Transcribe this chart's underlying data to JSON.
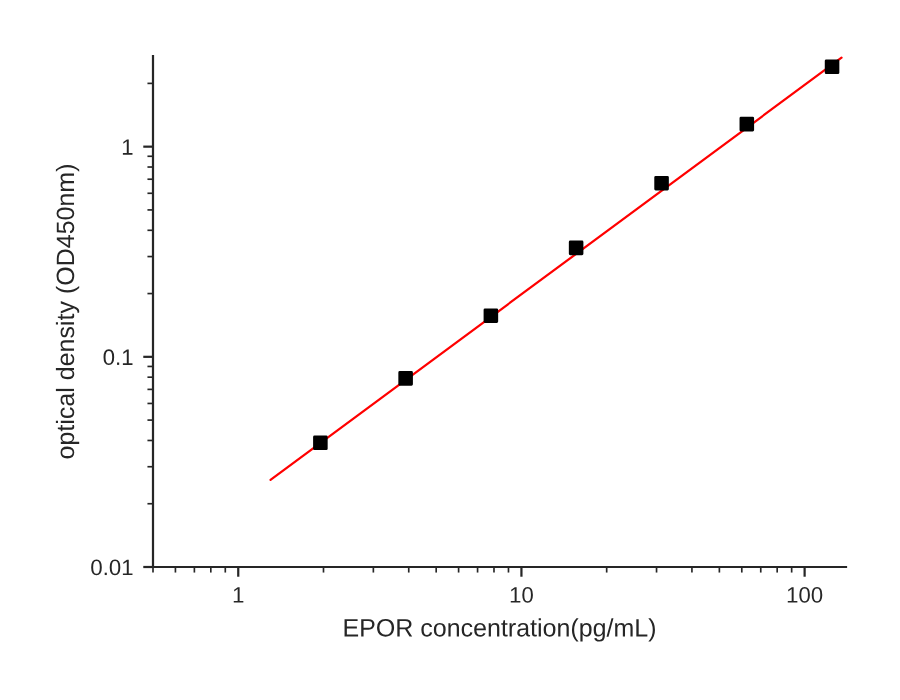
{
  "chart_data": {
    "type": "scatter",
    "xlabel": "EPOR concentration(pg/mL)",
    "ylabel": "optical density (OD450nm)",
    "log": "xy",
    "grid": false,
    "legend": false,
    "xlim": [
      0.5,
      140
    ],
    "ylim": [
      0.01,
      2.7
    ],
    "xticks": [
      1,
      10,
      100
    ],
    "yticks": [
      0.01,
      0.1,
      1
    ],
    "series": [
      {
        "marker": "square",
        "color": "#000000",
        "x": [
          1.95,
          3.9,
          7.8,
          15.6,
          31.25,
          62.5,
          125
        ],
        "values": [
          0.039,
          0.079,
          0.157,
          0.33,
          0.67,
          1.28,
          2.4
        ]
      },
      {
        "type": "line",
        "marker": "none",
        "color": "#ff0000",
        "x": [
          1.3,
          135
        ],
        "values": [
          0.026,
          2.65
        ]
      }
    ]
  }
}
